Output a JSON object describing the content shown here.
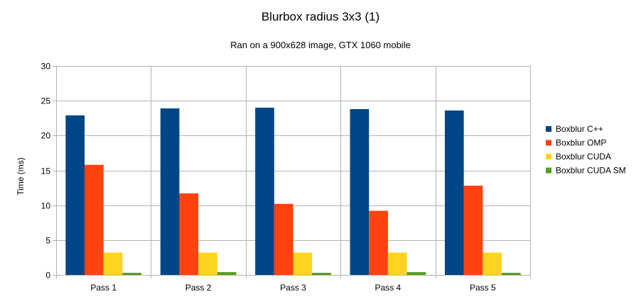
{
  "chart_data": {
    "type": "bar",
    "title": "Blurbox radius 3x3 (1)",
    "subtitle": "Ran on a 900x628 image, GTX 1060 mobile",
    "xlabel": "",
    "ylabel": "Time (ms)",
    "ylim": [
      0,
      30
    ],
    "yticks": [
      0,
      5,
      10,
      15,
      20,
      25,
      30
    ],
    "grid": true,
    "legend_position": "right",
    "categories": [
      "Pass 1",
      "Pass 2",
      "Pass 3",
      "Pass 4",
      "Pass 5"
    ],
    "series": [
      {
        "name": "Boxblur C++",
        "color": "#004586",
        "values": [
          22.9,
          23.9,
          24.0,
          23.8,
          23.6
        ]
      },
      {
        "name": "Boxblur OMP",
        "color": "#ff420e",
        "values": [
          15.8,
          11.7,
          10.2,
          9.2,
          12.8
        ]
      },
      {
        "name": "Boxblur CUDA",
        "color": "#ffd320",
        "values": [
          3.2,
          3.2,
          3.2,
          3.2,
          3.2
        ]
      },
      {
        "name": "Boxblur CUDA SM",
        "color": "#579d1c",
        "values": [
          0.3,
          0.4,
          0.3,
          0.4,
          0.3
        ]
      }
    ]
  }
}
